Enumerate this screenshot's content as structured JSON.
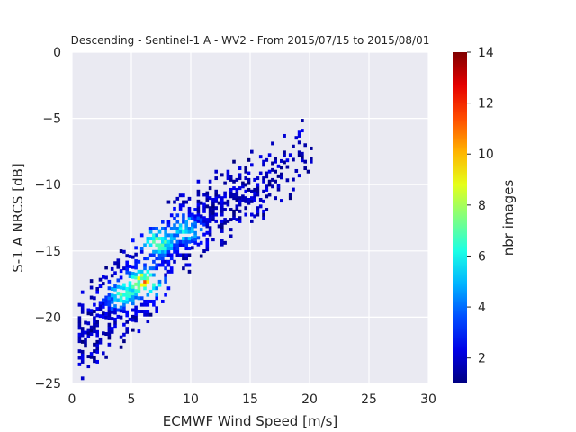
{
  "chart_data": {
    "type": "heatmap",
    "title": "Descending - Sentinel-1 A - WV2 - From 2015/07/15 to 2015/08/01",
    "xlabel": "ECMWF Wind Speed [m/s]",
    "ylabel": "S-1 A NRCS [dB]",
    "xlim": [
      0,
      30
    ],
    "ylim": [
      -25,
      0
    ],
    "xticks": [
      "0",
      "5",
      "10",
      "15",
      "20",
      "25",
      "30"
    ],
    "yticks": [
      "0",
      "−5",
      "−10",
      "−15",
      "−20",
      "−25"
    ],
    "grid": true,
    "colormap": "jet",
    "colorbar": {
      "label": "nbr images",
      "range": [
        1,
        14
      ],
      "ticks": [
        "2",
        "4",
        "6",
        "8",
        "10",
        "12",
        "14"
      ]
    },
    "bin_size": {
      "x": 0.25,
      "y": 0.25
    },
    "density_ridge": [
      {
        "x": 0.5,
        "y": -21.5
      },
      {
        "x": 3,
        "y": -19.5
      },
      {
        "x": 5.5,
        "y": -17.5
      },
      {
        "x": 7,
        "y": -16.0
      },
      {
        "x": 8.5,
        "y": -14.5
      },
      {
        "x": 10,
        "y": -13.0
      },
      {
        "x": 12,
        "y": -12.0
      },
      {
        "x": 14,
        "y": -11.0
      },
      {
        "x": 17,
        "y": -9.5
      },
      {
        "x": 19.5,
        "y": -8.0
      }
    ],
    "density_peaks": [
      {
        "x": 6,
        "y": -17.5,
        "count": 10
      },
      {
        "x": 7,
        "y": -14.5,
        "count": 8
      },
      {
        "x": 9.5,
        "y": -13.5,
        "count": 6
      },
      {
        "x": 4,
        "y": -18.5,
        "count": 6
      }
    ],
    "colors": {
      "background": "#eaeaf2",
      "grid": "#ffffff"
    }
  }
}
